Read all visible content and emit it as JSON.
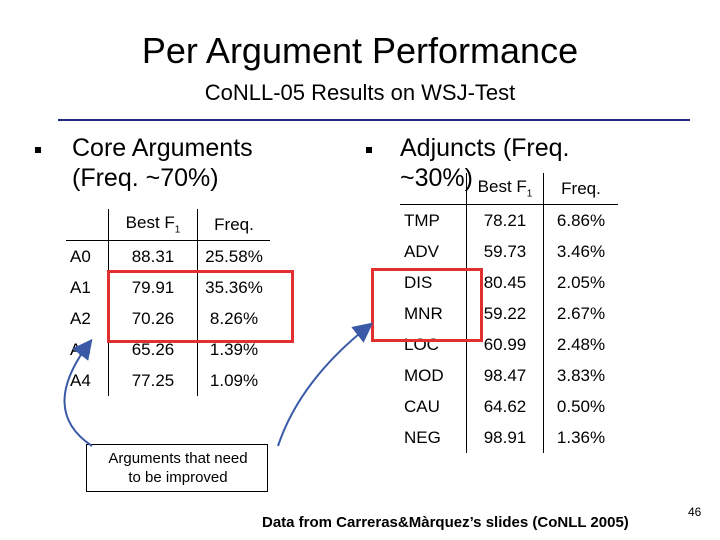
{
  "title": "Per Argument Performance",
  "subtitle": "CoNLL-05 Results on WSJ-Test",
  "core": {
    "bullet_line1": "Core Arguments",
    "bullet_line2": "(Freq. ~70%)",
    "header": [
      "",
      "Best F",
      "Freq."
    ],
    "header_sub": "1",
    "rows": [
      [
        "A0",
        "88.31",
        "25.58%"
      ],
      [
        "A1",
        "79.91",
        "35.36%"
      ],
      [
        "A2",
        "70.26",
        "8.26%"
      ],
      [
        "A3",
        "65.26",
        "1.39%"
      ],
      [
        "A4",
        "77.25",
        "1.09%"
      ]
    ]
  },
  "adjuncts": {
    "bullet_line1": "Adjuncts (Freq.",
    "bullet_line2": "~30%)",
    "header": [
      "",
      "Best F",
      "Freq."
    ],
    "header_sub": "1",
    "rows": [
      [
        "TMP",
        "78.21",
        "6.86%"
      ],
      [
        "ADV",
        "59.73",
        "3.46%"
      ],
      [
        "DIS",
        "80.45",
        "2.05%"
      ],
      [
        "MNR",
        "59.22",
        "2.67%"
      ],
      [
        "LOC",
        "60.99",
        "2.48%"
      ],
      [
        "MOD",
        "98.47",
        "3.83%"
      ],
      [
        "CAU",
        "64.62",
        "0.50%"
      ],
      [
        "NEG",
        "98.91",
        "1.36%"
      ]
    ]
  },
  "callout": {
    "line1": "Arguments that need",
    "line2": "to be improved"
  },
  "source_note": "Data from Carreras&Màrquez’s slides (CoNLL 2005)",
  "page_number": "46",
  "colors": {
    "highlight": "#e23030",
    "rule": "#1f2a80",
    "arrow": "#3a5aa8"
  }
}
